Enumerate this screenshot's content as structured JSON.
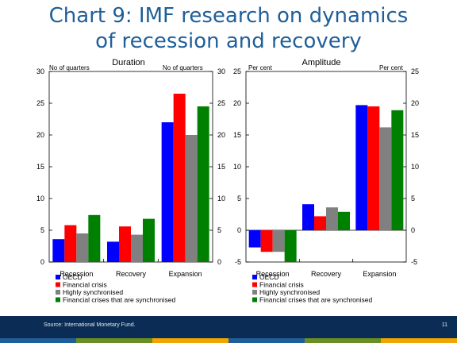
{
  "title_line1": "Chart 9: IMF research on dynamics",
  "title_line2": "of recession and recovery",
  "footer": {
    "source": "Source: International Monetary Fund.",
    "page": "11"
  },
  "colors": {
    "oecd": "#0000ff",
    "financial_crisis": "#ff0000",
    "highly_synchronised": "#808080",
    "fc_synchronised": "#008000",
    "footer_bg": "#0b2d55"
  },
  "footer_strip_colors": [
    "#1f5f99",
    "#6b8e23",
    "#f0a500",
    "#1f5f99",
    "#6b8e23",
    "#f0a500"
  ],
  "legend": [
    {
      "label": "OECD",
      "color": "#0000ff"
    },
    {
      "label": "Financial crisis",
      "color": "#ff0000"
    },
    {
      "label": "Highly synchronised",
      "color": "#808080"
    },
    {
      "label": "Financial crises that are synchronised",
      "color": "#008000"
    }
  ],
  "chart_data": [
    {
      "type": "bar",
      "title": "Duration",
      "left_unit_label": "No of quarters",
      "right_unit_label": "No of quarters",
      "categories": [
        "Recession",
        "Recovery",
        "Expansion"
      ],
      "ylim": [
        0,
        30
      ],
      "yticks": [
        0,
        5,
        10,
        15,
        20,
        25,
        30
      ],
      "grid": false,
      "legend_position": "bottom-left",
      "series": [
        {
          "name": "OECD",
          "color": "#0000ff",
          "values": [
            3.6,
            3.2,
            22
          ]
        },
        {
          "name": "Financial crisis",
          "color": "#ff0000",
          "values": [
            5.8,
            5.6,
            26.5
          ]
        },
        {
          "name": "Highly synchronised",
          "color": "#808080",
          "values": [
            4.5,
            4.3,
            20
          ]
        },
        {
          "name": "Financial crises that are synchronised",
          "color": "#008000",
          "values": [
            7.4,
            6.8,
            24.5
          ]
        }
      ]
    },
    {
      "type": "bar",
      "title": "Amplitude",
      "left_unit_label": "Per cent",
      "right_unit_label": "Per cent",
      "categories": [
        "Recession",
        "Recovery",
        "Expansion"
      ],
      "ylim": [
        -5,
        25
      ],
      "yticks": [
        -5,
        0,
        5,
        10,
        15,
        20,
        25
      ],
      "grid": false,
      "legend_position": "bottom-left",
      "series": [
        {
          "name": "OECD",
          "color": "#0000ff",
          "values": [
            -2.7,
            4.1,
            19.7
          ]
        },
        {
          "name": "Financial crisis",
          "color": "#ff0000",
          "values": [
            -3.4,
            2.2,
            19.5
          ]
        },
        {
          "name": "Highly synchronised",
          "color": "#808080",
          "values": [
            -3.4,
            3.6,
            16.2
          ]
        },
        {
          "name": "Financial crises that are synchronised",
          "color": "#008000",
          "values": [
            -5.0,
            2.9,
            18.9
          ]
        }
      ]
    }
  ]
}
